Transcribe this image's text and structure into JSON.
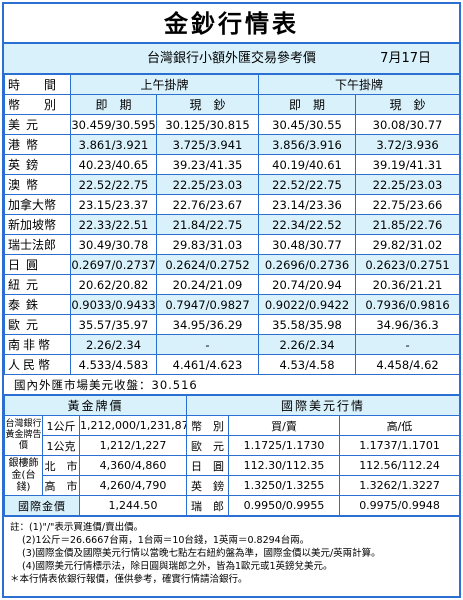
{
  "title": "金鈔行情表",
  "subtitle": "台灣銀行小額外匯交易參考價",
  "date": "7月17日",
  "fx": {
    "time_label": "時　間",
    "currency_label": "幣　別",
    "am_label": "上午掛牌",
    "pm_label": "下午掛牌",
    "spot_label": "即　期",
    "cash_label": "現　鈔",
    "rows": [
      {
        "cur": "美元",
        "am_spot": "30.459/30.595",
        "am_cash": "30.125/30.815",
        "pm_spot": "30.45/30.55",
        "pm_cash": "30.08/30.77"
      },
      {
        "cur": "港幣",
        "am_spot": "3.861/3.921",
        "am_cash": "3.725/3.941",
        "pm_spot": "3.856/3.916",
        "pm_cash": "3.72/3.936"
      },
      {
        "cur": "英鎊",
        "am_spot": "40.23/40.65",
        "am_cash": "39.23/41.35",
        "pm_spot": "40.19/40.61",
        "pm_cash": "39.19/41.31"
      },
      {
        "cur": "澳幣",
        "am_spot": "22.52/22.75",
        "am_cash": "22.25/23.03",
        "pm_spot": "22.52/22.75",
        "pm_cash": "22.25/23.03"
      },
      {
        "cur": "加拿大幣",
        "am_spot": "23.15/23.37",
        "am_cash": "22.76/23.67",
        "pm_spot": "23.14/23.36",
        "pm_cash": "22.75/23.66"
      },
      {
        "cur": "新加坡幣",
        "am_spot": "22.33/22.51",
        "am_cash": "21.84/22.75",
        "pm_spot": "22.34/22.52",
        "pm_cash": "21.85/22.76"
      },
      {
        "cur": "瑞士法郎",
        "am_spot": "30.49/30.78",
        "am_cash": "29.83/31.03",
        "pm_spot": "30.48/30.77",
        "pm_cash": "29.82/31.02"
      },
      {
        "cur": "日圓",
        "am_spot": "0.2697/0.2737",
        "am_cash": "0.2624/0.2752",
        "pm_spot": "0.2696/0.2736",
        "pm_cash": "0.2623/0.2751"
      },
      {
        "cur": "紐元",
        "am_spot": "20.62/20.82",
        "am_cash": "20.24/21.09",
        "pm_spot": "20.74/20.94",
        "pm_cash": "20.36/21.21"
      },
      {
        "cur": "泰銖",
        "am_spot": "0.9033/0.9433",
        "am_cash": "0.7947/0.9827",
        "pm_spot": "0.9022/0.9422",
        "pm_cash": "0.7936/0.9816"
      },
      {
        "cur": "歐元",
        "am_spot": "35.57/35.97",
        "am_cash": "34.95/36.29",
        "pm_spot": "35.58/35.98",
        "pm_cash": "34.96/36.3"
      },
      {
        "cur": "南非幣",
        "am_spot": "2.26/2.34",
        "am_cash": "-",
        "pm_spot": "2.26/2.34",
        "pm_cash": "-"
      },
      {
        "cur": "人民幣",
        "am_spot": "4.533/4.583",
        "am_cash": "4.461/4.623",
        "pm_spot": "4.53/4.58",
        "pm_cash": "4.458/4.62"
      }
    ]
  },
  "domestic_close": "國內外匯市場美元收盤：30.516",
  "gold": {
    "header": "黃金牌價",
    "bank_label": "台灣銀行黃金牌告價",
    "rows": [
      {
        "unit": "1公斤",
        "price": "1,212,000/1,231,870"
      },
      {
        "unit": "1公克",
        "price": "1,212/1,227"
      }
    ],
    "ingot_label": "銀樓飾金(台錢)",
    "ingot_rows": [
      {
        "city": "北　市",
        "price": "4,360/4,860"
      },
      {
        "city": "高　市",
        "price": "4,260/4,790"
      }
    ],
    "intl_label": "國際金價",
    "intl_price": "1,244.50"
  },
  "usd": {
    "header": "國際美元行情",
    "currency_label": "幣　別",
    "buy_sell_label": "買/賣",
    "high_low_label": "高/低",
    "rows": [
      {
        "cur": "歐　元",
        "bid": "1.1725/1.1730",
        "hl": "1.1737/1.1701"
      },
      {
        "cur": "日　圓",
        "bid": "112.30/112.35",
        "hl": "112.56/112.24"
      },
      {
        "cur": "英　鎊",
        "bid": "1.3250/1.3255",
        "hl": "1.3262/1.3227"
      },
      {
        "cur": "瑞　郎",
        "bid": "0.9950/0.9955",
        "hl": "0.9975/0.9948"
      }
    ]
  },
  "notes": [
    "註：(1)\"/\"表示買進價/賣出價。",
    "(2)1公斤＝26.6667台兩，1台兩＝10台錢，1英兩＝0.8294台兩。",
    "(3)國際金價及國際美元行情以當晚七點左右紐約盤為準，國際金價以美元/英兩計算。",
    "(4)國際美元行情標示法，除日圓與瑞郎之外，皆為1歐元或1英鎊兌美元。",
    "＊本行情表依銀行報價，僅供參考，確實行情請洽銀行。"
  ]
}
